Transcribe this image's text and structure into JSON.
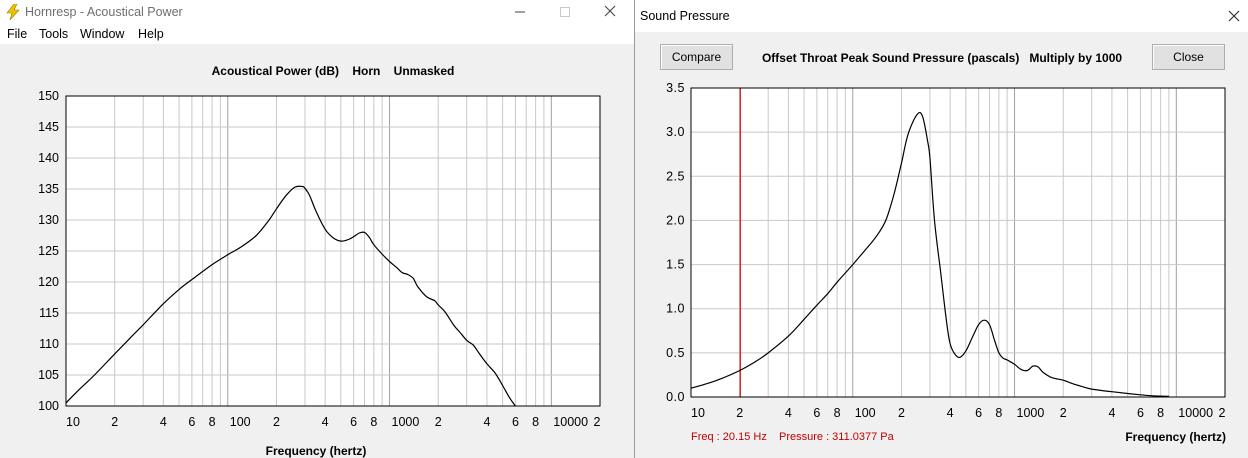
{
  "main_window": {
    "title": "Hornresp - Acoustical Power",
    "menu": [
      "File",
      "Tools",
      "Window",
      "Help"
    ]
  },
  "dialog": {
    "title": "Sound Pressure",
    "compare_label": "Compare",
    "header": "Offset Throat Peak Sound Pressure (pascals)   Multiply by 1000",
    "close_label": "Close",
    "readout_freq": "Freq : 20.15 Hz",
    "readout_pressure": "Pressure : 311.0377 Pa"
  },
  "colors": {
    "curve": "#000000",
    "grid": "#c8c8c8",
    "grid_decade": "#a0a0a0",
    "marker": "#cc0000"
  },
  "chart_data": [
    {
      "type": "line",
      "title": "Acoustical Power (dB)    Horn    Unmasked",
      "xlabel": "Frequency (hertz)",
      "ylabel": "",
      "x_scale": "log",
      "xlim": [
        10,
        20000
      ],
      "ylim": [
        100,
        150
      ],
      "x_tick_labels": [
        "10",
        "2",
        "4",
        "6",
        "8",
        "100",
        "2",
        "4",
        "6",
        "8",
        "1000",
        "2",
        "4",
        "6",
        "8",
        "10000",
        "2"
      ],
      "y_ticks": [
        100,
        105,
        110,
        115,
        120,
        125,
        130,
        135,
        140,
        145,
        150
      ],
      "series": [
        {
          "x": [
            10,
            12,
            15,
            20,
            25,
            30,
            40,
            50,
            60,
            80,
            100,
            120,
            150,
            180,
            200,
            230,
            260,
            290,
            300,
            320,
            350,
            400,
            450,
            500,
            550,
            600,
            650,
            700,
            750,
            800,
            900,
            1000,
            1100,
            1200,
            1300,
            1400,
            1500,
            1700,
            1900,
            2000,
            2200,
            2500,
            2700,
            3000,
            3300,
            3600,
            4000,
            4500,
            5000,
            5500,
            6000
          ],
          "y": [
            100.5,
            102.6,
            105.0,
            108.4,
            111.0,
            113.1,
            116.5,
            118.8,
            120.4,
            122.8,
            124.4,
            125.6,
            127.5,
            130.0,
            131.8,
            134.0,
            135.3,
            135.4,
            135.1,
            134.0,
            131.5,
            128.5,
            127.1,
            126.6,
            126.8,
            127.3,
            127.9,
            128.0,
            127.2,
            126.0,
            124.5,
            123.3,
            122.4,
            121.5,
            121.2,
            120.6,
            119.2,
            117.6,
            117.0,
            116.3,
            115.2,
            113.0,
            112.0,
            110.6,
            109.8,
            108.4,
            106.8,
            105.3,
            103.3,
            101.4,
            100.0
          ]
        }
      ]
    },
    {
      "type": "line",
      "title": "Offset Throat Peak Sound Pressure (pascals)   Multiply by 1000",
      "xlabel": "Frequency (hertz)",
      "ylabel": "",
      "x_scale": "log",
      "xlim": [
        10,
        20000
      ],
      "ylim": [
        0,
        3.5
      ],
      "x_tick_labels": [
        "10",
        "2",
        "4",
        "6",
        "8",
        "100",
        "2",
        "4",
        "6",
        "8",
        "1000",
        "2",
        "4",
        "6",
        "8",
        "10000",
        "2"
      ],
      "y_tick_labels": [
        "0.0",
        "0.5",
        "1.0",
        "1.5",
        "2.0",
        "2.5",
        "3.0",
        "3.5"
      ],
      "marker_x": 20.15,
      "series": [
        {
          "x": [
            10,
            12,
            15,
            20,
            25,
            30,
            40,
            50,
            60,
            70,
            80,
            100,
            120,
            140,
            160,
            180,
            200,
            220,
            250,
            270,
            290,
            300,
            320,
            350,
            380,
            400,
            430,
            460,
            500,
            550,
            600,
            650,
            700,
            750,
            800,
            850,
            900,
            1000,
            1100,
            1200,
            1300,
            1400,
            1500,
            1700,
            2000,
            2300,
            2600,
            3000,
            4000,
            5000,
            6000,
            7000,
            8000,
            9000
          ],
          "y": [
            0.1,
            0.14,
            0.2,
            0.3,
            0.4,
            0.5,
            0.69,
            0.88,
            1.04,
            1.17,
            1.3,
            1.5,
            1.67,
            1.82,
            2.0,
            2.3,
            2.65,
            2.98,
            3.2,
            3.18,
            2.9,
            2.7,
            2.0,
            1.4,
            0.85,
            0.6,
            0.48,
            0.45,
            0.52,
            0.68,
            0.82,
            0.87,
            0.82,
            0.65,
            0.5,
            0.44,
            0.42,
            0.37,
            0.31,
            0.3,
            0.35,
            0.34,
            0.28,
            0.22,
            0.19,
            0.15,
            0.12,
            0.09,
            0.06,
            0.04,
            0.025,
            0.015,
            0.01,
            0.008
          ]
        }
      ]
    }
  ]
}
